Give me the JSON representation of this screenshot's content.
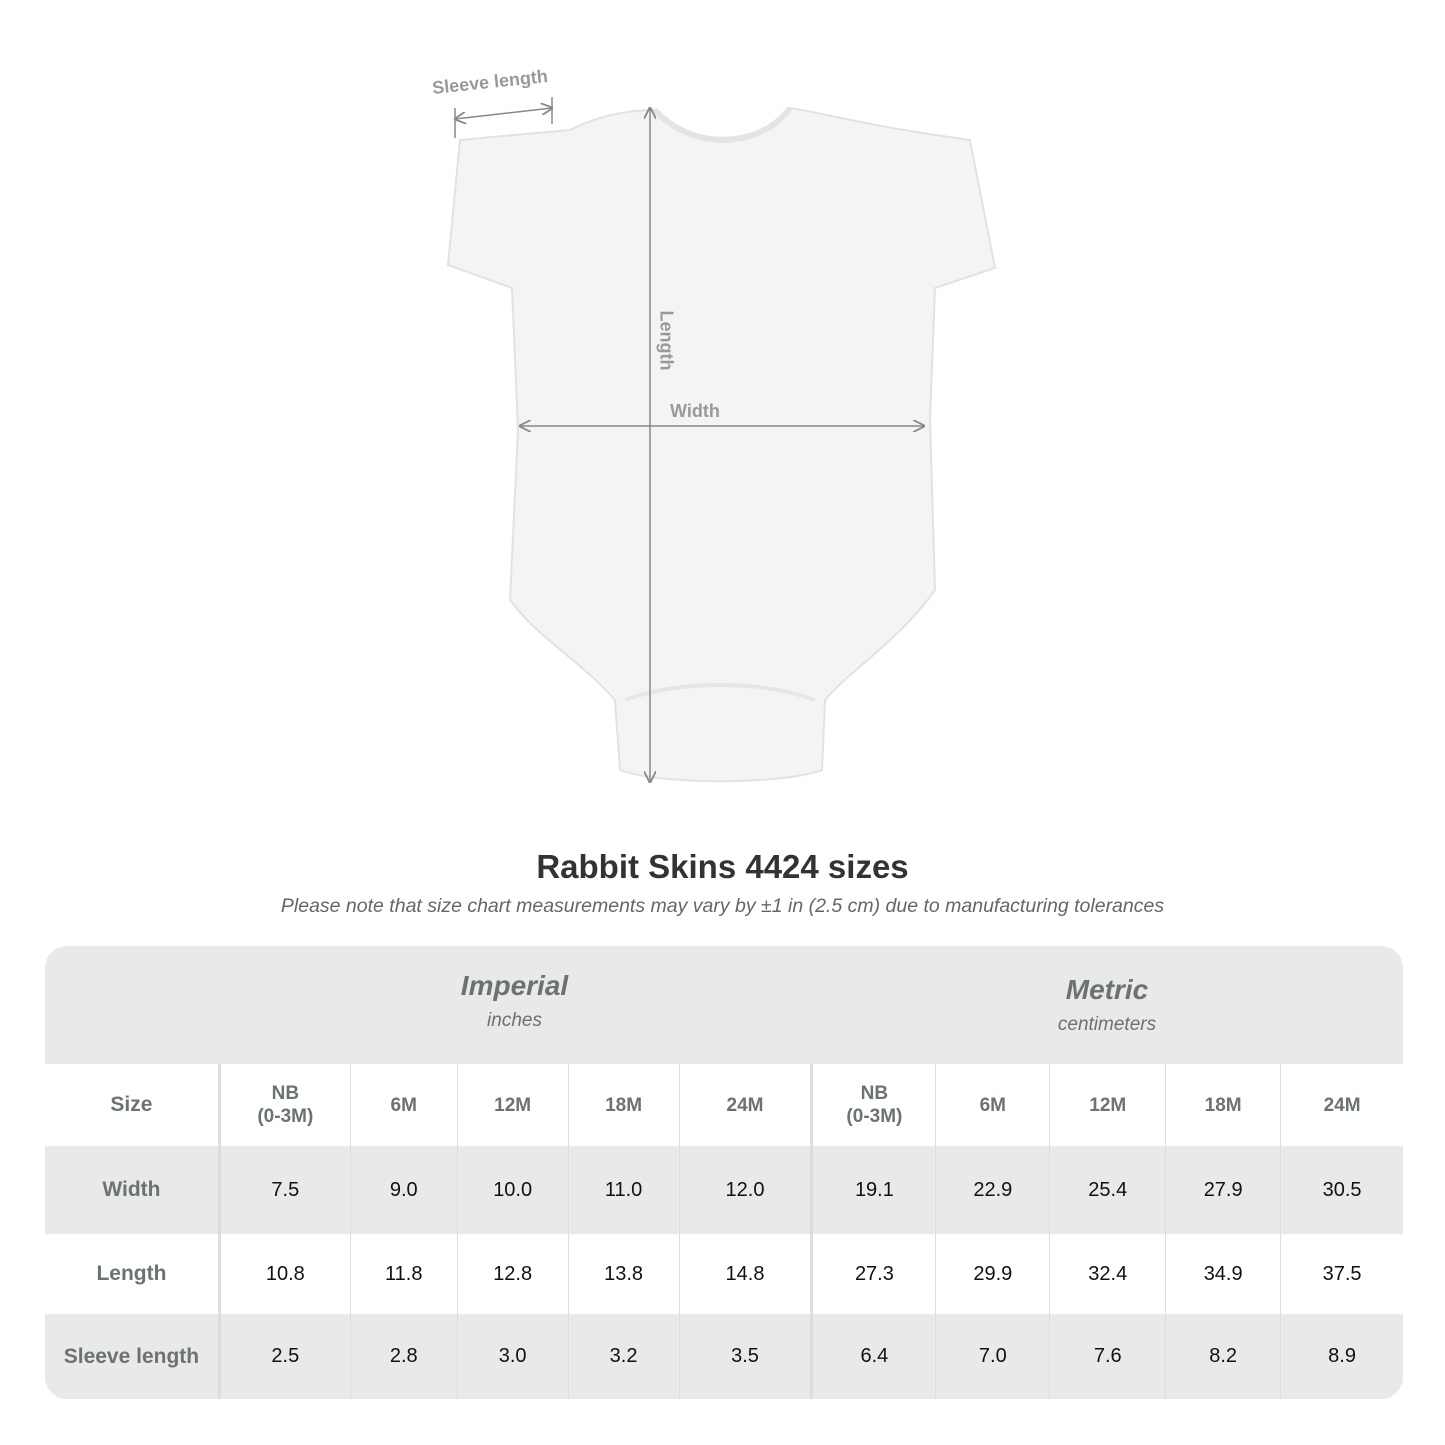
{
  "diagram": {
    "labels": {
      "sleeve": "Sleeve length",
      "length": "Length",
      "width": "Width"
    }
  },
  "title": "Rabbit Skins 4424 sizes",
  "subtitle": "Please note that size chart measurements may vary by ±1 in (2.5 cm) due to manufacturing tolerances",
  "table": {
    "imperial": {
      "name": "Imperial",
      "unit": "inches"
    },
    "metric": {
      "name": "Metric",
      "unit": "centimeters"
    },
    "size_label": "Size",
    "sizes": [
      "NB\n(0-3M)",
      "6M",
      "12M",
      "18M",
      "24M",
      "NB\n(0-3M)",
      "6M",
      "12M",
      "18M",
      "24M"
    ],
    "rows": [
      {
        "label": "Width",
        "values": [
          "7.5",
          "9.0",
          "10.0",
          "11.0",
          "12.0",
          "19.1",
          "22.9",
          "25.4",
          "27.9",
          "30.5"
        ]
      },
      {
        "label": "Length",
        "values": [
          "10.8",
          "11.8",
          "12.8",
          "13.8",
          "14.8",
          "27.3",
          "29.9",
          "32.4",
          "34.9",
          "37.5"
        ]
      },
      {
        "label": "Sleeve length",
        "values": [
          "2.5",
          "2.8",
          "3.0",
          "3.2",
          "3.5",
          "6.4",
          "7.0",
          "7.6",
          "8.2",
          "8.9"
        ]
      }
    ]
  }
}
